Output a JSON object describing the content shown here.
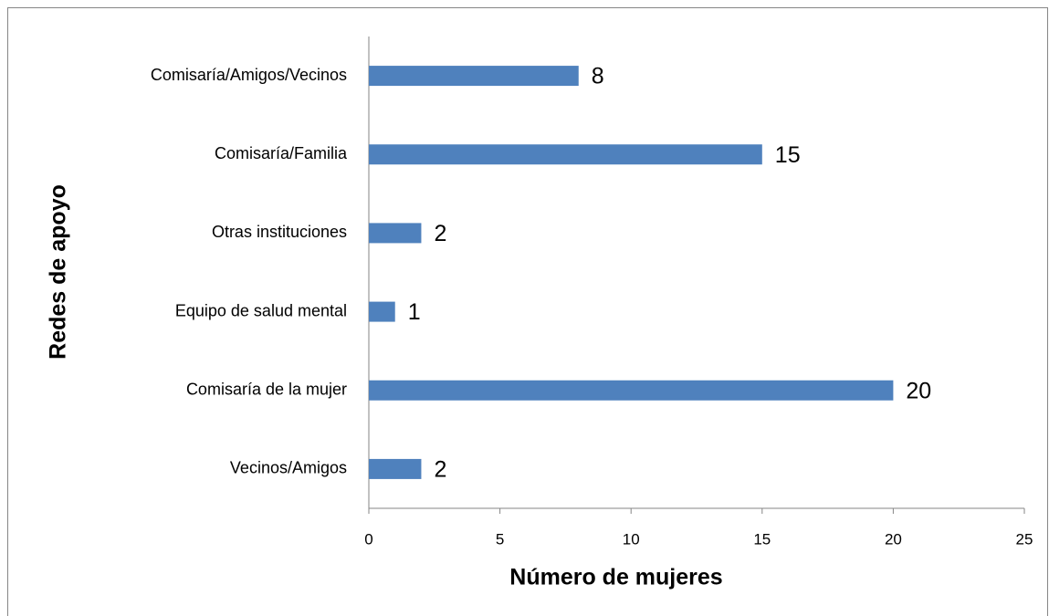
{
  "chart_data": {
    "type": "bar",
    "orientation": "horizontal",
    "xlabel": "Número de mujeres",
    "ylabel": "Redes de apoyo",
    "categories": [
      "Comisaría/Amigos/Vecinos",
      "Comisaría/Familia",
      "Otras instituciones",
      "Equipo de salud mental",
      "Comisaría de la mujer",
      "Vecinos/Amigos"
    ],
    "values": [
      8,
      15,
      2,
      1,
      20,
      2
    ],
    "color": "#4f81bd",
    "xlim": [
      0,
      25
    ],
    "xticks": [
      0,
      5,
      10,
      15,
      20,
      25
    ],
    "grid": false
  }
}
